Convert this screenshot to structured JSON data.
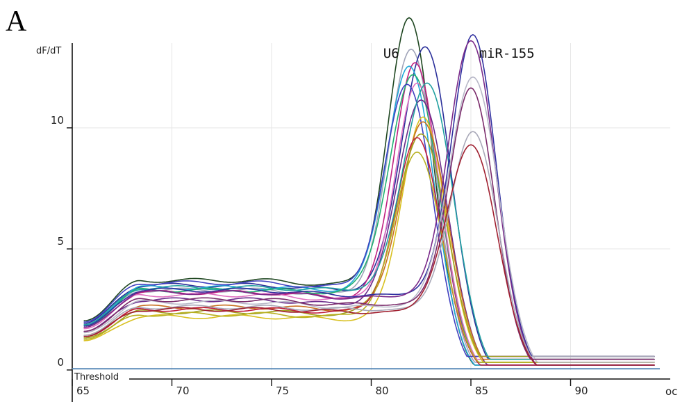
{
  "panel_label": "A",
  "chart_data": {
    "type": "line",
    "ylabel": "dF/dT",
    "xunit": "oc",
    "xlim": [
      65,
      95
    ],
    "ylim": [
      0,
      13.5
    ],
    "x_ticks": [
      65,
      70,
      75,
      80,
      85,
      90
    ],
    "x_tick_labels": [
      "65",
      "70",
      "75",
      "80",
      "85",
      "90"
    ],
    "y_ticks": [
      0,
      5,
      10
    ],
    "y_tick_labels": [
      "0",
      "5",
      "10"
    ],
    "grid": true,
    "threshold": {
      "label": "Threshold",
      "y": 0.05
    },
    "annotations": [
      {
        "text": "U6",
        "x": 81.0,
        "y": 12.9
      },
      {
        "text": "miR-155",
        "x": 86.8,
        "y": 12.9
      }
    ],
    "series": [
      {
        "color": "#1e4620",
        "peak_x": 81.9,
        "peak_y": 12.8,
        "plateau": 3.7,
        "shoulder": 3.5
      },
      {
        "color": "#9fa3b8",
        "peak_x": 82.0,
        "peak_y": 11.7,
        "plateau": 3.3,
        "shoulder": 3.1
      },
      {
        "color": "#2a2f9a",
        "peak_x": 82.7,
        "peak_y": 11.7,
        "plateau": 3.5,
        "shoulder": 3.3
      },
      {
        "color": "#c02080",
        "peak_x": 82.2,
        "peak_y": 11.2,
        "plateau": 3.2,
        "shoulder": 3.0
      },
      {
        "color": "#20a8d8",
        "peak_x": 81.9,
        "peak_y": 10.9,
        "plateau": 3.4,
        "shoulder": 3.3
      },
      {
        "color": "#20b070",
        "peak_x": 82.1,
        "peak_y": 10.6,
        "plateau": 3.3,
        "shoulder": 3.2
      },
      {
        "color": "#e070c0",
        "peak_x": 82.3,
        "peak_y": 10.4,
        "plateau": 3.1,
        "shoulder": 2.9
      },
      {
        "color": "#4040c0",
        "peak_x": 81.8,
        "peak_y": 10.1,
        "plateau": 3.6,
        "shoulder": 3.4
      },
      {
        "color": "#6a2a8a",
        "peak_x": 82.5,
        "peak_y": 9.8,
        "plateau": 2.9,
        "shoulder": 2.7
      },
      {
        "color": "#d8c020",
        "peak_x": 82.6,
        "peak_y": 9.4,
        "plateau": 2.2,
        "shoulder": 2.1
      },
      {
        "color": "#c87020",
        "peak_x": 82.6,
        "peak_y": 9.0,
        "plateau": 2.6,
        "shoulder": 2.5
      },
      {
        "color": "#a0a020",
        "peak_x": 82.5,
        "peak_y": 8.6,
        "plateau": 2.4,
        "shoulder": 2.3
      },
      {
        "color": "#c02040",
        "peak_x": 82.3,
        "peak_y": 8.4,
        "plateau": 2.5,
        "shoulder": 2.4
      },
      {
        "color": "#b8b020",
        "peak_x": 82.3,
        "peak_y": 7.9,
        "plateau": 2.3,
        "shoulder": 2.2
      },
      {
        "color": "#20a0a0",
        "peak_x": 82.8,
        "peak_y": 10.2,
        "plateau": 3.4,
        "shoulder": 3.3
      },
      {
        "color": "#3030a0",
        "peak_x": 85.1,
        "peak_y": 12.3,
        "plateau": 3.3,
        "shoulder": 3.1
      },
      {
        "color": "#7a2a8a",
        "peak_x": 85.0,
        "peak_y": 12.1,
        "plateau": 3.2,
        "shoulder": 3.0
      },
      {
        "color": "#b8b8c8",
        "peak_x": 85.1,
        "peak_y": 10.8,
        "plateau": 2.8,
        "shoulder": 2.6
      },
      {
        "color": "#7a2a6a",
        "peak_x": 85.0,
        "peak_y": 10.3,
        "plateau": 2.9,
        "shoulder": 2.7
      },
      {
        "color": "#a8a8b8",
        "peak_x": 85.1,
        "peak_y": 8.6,
        "plateau": 2.6,
        "shoulder": 2.5
      },
      {
        "color": "#a02030",
        "peak_x": 85.0,
        "peak_y": 8.1,
        "plateau": 2.5,
        "shoulder": 2.4
      }
    ]
  }
}
